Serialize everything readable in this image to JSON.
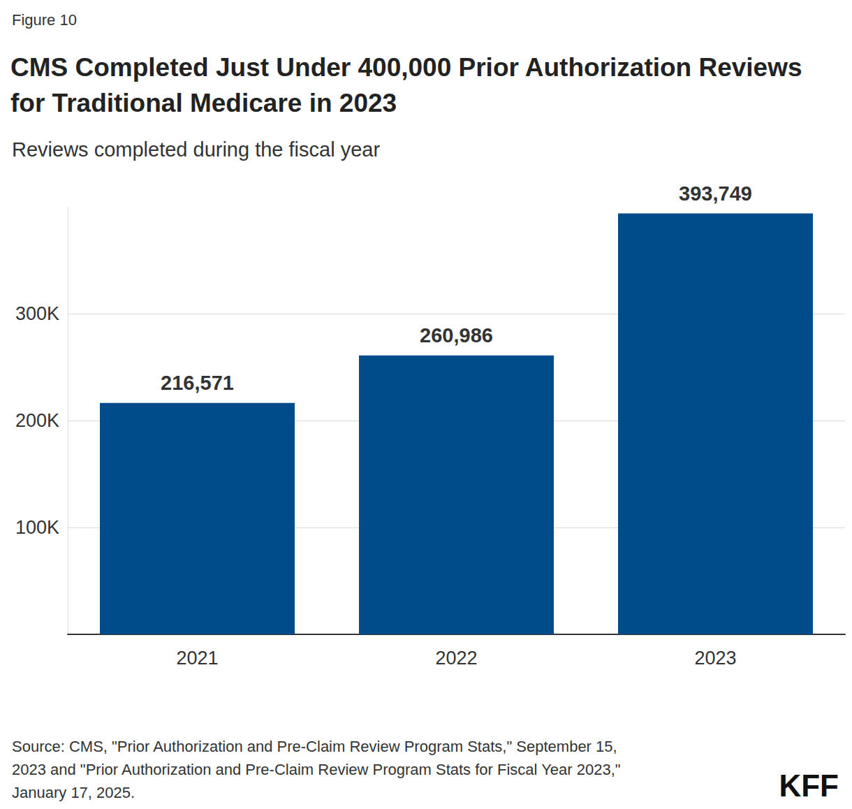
{
  "chart_data": {
    "type": "bar",
    "figure_label": "Figure 10",
    "title": "CMS Completed Just Under 400,000 Prior Authorization Reviews for Traditional Medicare in 2023",
    "subtitle": "Reviews completed during the fiscal year",
    "source": "Source: CMS, \"Prior Authorization and Pre-Claim Review Program Stats,\" September 15, 2023 and \"Prior Authorization and Pre-Claim Review Program Stats for Fiscal Year 2023,\" January 17, 2025.",
    "logo": "KFF",
    "categories": [
      "2021",
      "2022",
      "2023"
    ],
    "values": [
      216571,
      260986,
      393749
    ],
    "value_labels": [
      "216,571",
      "260,986",
      "393,749"
    ],
    "data_labels": true,
    "color": "#004b8a",
    "ylim": [
      0,
      400000
    ],
    "yticks": [
      {
        "value": 100000,
        "label": "100K"
      },
      {
        "value": 200000,
        "label": "200K"
      },
      {
        "value": 300000,
        "label": "300K"
      }
    ],
    "grid": true
  }
}
